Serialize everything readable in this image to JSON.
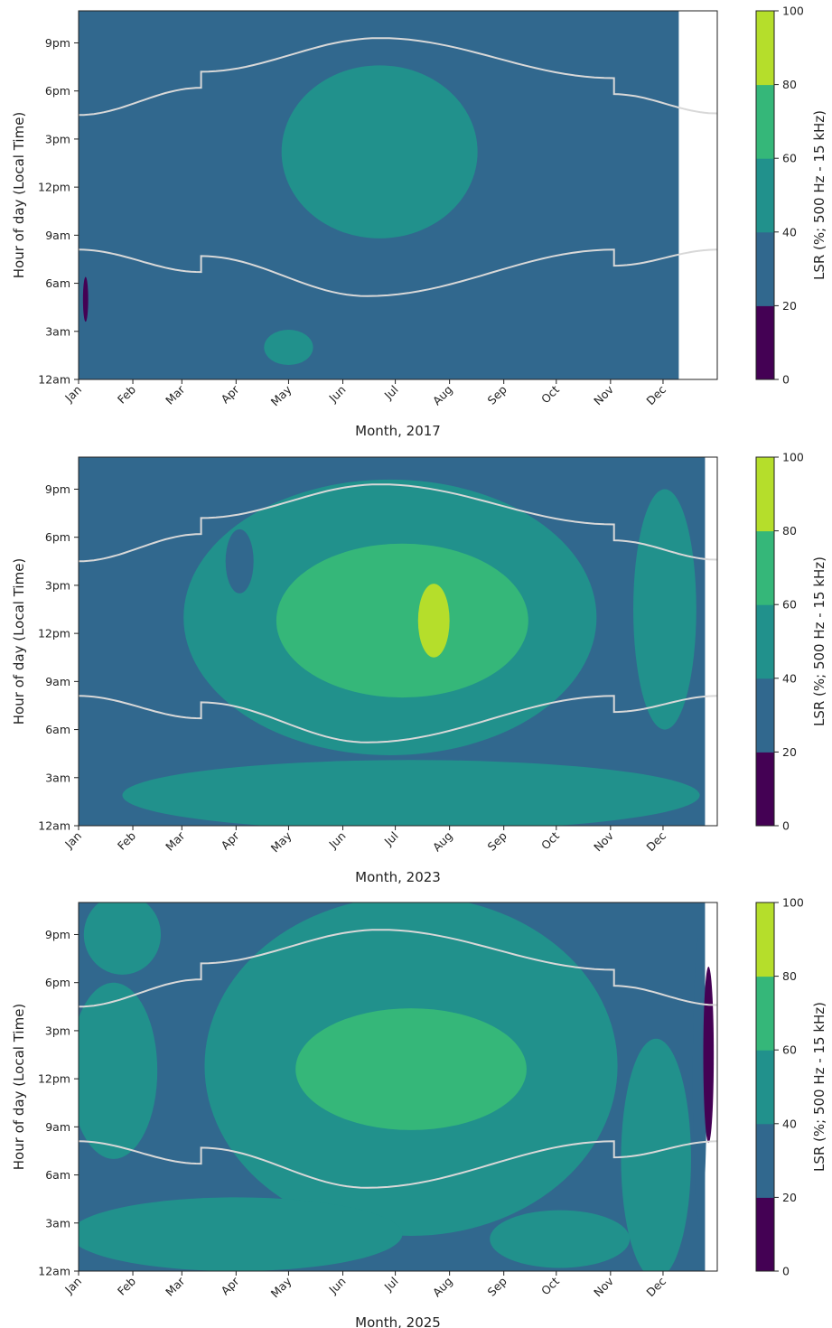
{
  "colors": {
    "levels": [
      "#440154",
      "#31688e",
      "#21918c",
      "#35b779",
      "#b5de2b"
    ],
    "sun_line": "#d8d8d8",
    "axis": "#222222"
  },
  "chart_data": [
    {
      "type": "heatmap",
      "subtype": "filled-contour",
      "xlabel": "Month, 2017",
      "ylabel": "Hour of day (Local Time)",
      "colorbar_label": "LSR (%; 500 Hz - 15 kHz)",
      "x_ticks": [
        "Jan",
        "Feb",
        "Mar",
        "Apr",
        "May",
        "Jun",
        "Jul",
        "Aug",
        "Sep",
        "Oct",
        "Nov",
        "Dec"
      ],
      "y_ticks": [
        "12am",
        "3am",
        "6am",
        "9am",
        "12pm",
        "3pm",
        "6pm",
        "9pm"
      ],
      "y_tick_hours": [
        0,
        3,
        6,
        9,
        12,
        15,
        18,
        21
      ],
      "ylim": [
        0,
        23
      ],
      "xlim_days": [
        0,
        365
      ],
      "colorbar_ticks": [
        0,
        20,
        40,
        60,
        80,
        100
      ],
      "levels": [
        0,
        20,
        40,
        60,
        80,
        100
      ],
      "data_end_day": 343,
      "blobs": [
        {
          "level": 40,
          "cx": 172,
          "cy": 14.2,
          "rx": 56,
          "ry": 5.4
        },
        {
          "level": 40,
          "cx": 120,
          "cy": 2.0,
          "rx": 14,
          "ry": 1.1
        },
        {
          "level": 0,
          "cx": 4,
          "cy": 5.0,
          "rx": 1.5,
          "ry": 1.4
        }
      ],
      "sunrise_hours": [
        {
          "day": 0,
          "h": 8.1
        },
        {
          "day": 70,
          "h": 6.7
        },
        {
          "day": 70,
          "h": 7.7
        },
        {
          "day": 165,
          "h": 5.2
        },
        {
          "day": 306,
          "h": 8.1
        },
        {
          "day": 306,
          "h": 7.1
        },
        {
          "day": 365,
          "h": 8.1
        }
      ],
      "sunset_hours": [
        {
          "day": 0,
          "h": 16.5
        },
        {
          "day": 70,
          "h": 18.2
        },
        {
          "day": 70,
          "h": 19.2
        },
        {
          "day": 172,
          "h": 21.3
        },
        {
          "day": 306,
          "h": 18.8
        },
        {
          "day": 306,
          "h": 17.8
        },
        {
          "day": 365,
          "h": 16.6
        }
      ]
    },
    {
      "type": "heatmap",
      "subtype": "filled-contour",
      "xlabel": "Month, 2023",
      "ylabel": "Hour of day (Local Time)",
      "colorbar_label": "LSR (%; 500 Hz - 15 kHz)",
      "x_ticks": [
        "Jan",
        "Feb",
        "Mar",
        "Apr",
        "May",
        "Jun",
        "Jul",
        "Aug",
        "Sep",
        "Oct",
        "Nov",
        "Dec"
      ],
      "y_ticks": [
        "12am",
        "3am",
        "6am",
        "9am",
        "12pm",
        "3pm",
        "6pm",
        "9pm"
      ],
      "y_tick_hours": [
        0,
        3,
        6,
        9,
        12,
        15,
        18,
        21
      ],
      "ylim": [
        0,
        23
      ],
      "xlim_days": [
        0,
        365
      ],
      "colorbar_ticks": [
        0,
        20,
        40,
        60,
        80,
        100
      ],
      "levels": [
        0,
        20,
        40,
        60,
        80,
        100
      ],
      "data_end_day": 358,
      "blobs": [
        {
          "level": 40,
          "cx": 178,
          "cy": 13.0,
          "rx": 118,
          "ry": 8.6
        },
        {
          "level": 40,
          "cx": 190,
          "cy": 1.9,
          "rx": 165,
          "ry": 2.2
        },
        {
          "level": 40,
          "cx": 335,
          "cy": 13.5,
          "rx": 18,
          "ry": 7.5
        },
        {
          "level": 20,
          "cx": 92,
          "cy": 16.5,
          "rx": 8,
          "ry": 2.0
        },
        {
          "level": 60,
          "cx": 185,
          "cy": 12.8,
          "rx": 72,
          "ry": 4.8
        },
        {
          "level": 80,
          "cx": 203,
          "cy": 12.8,
          "rx": 9,
          "ry": 2.3
        }
      ],
      "sunrise_hours": [
        {
          "day": 0,
          "h": 8.1
        },
        {
          "day": 70,
          "h": 6.7
        },
        {
          "day": 70,
          "h": 7.7
        },
        {
          "day": 165,
          "h": 5.2
        },
        {
          "day": 306,
          "h": 8.1
        },
        {
          "day": 306,
          "h": 7.1
        },
        {
          "day": 365,
          "h": 8.1
        }
      ],
      "sunset_hours": [
        {
          "day": 0,
          "h": 16.5
        },
        {
          "day": 70,
          "h": 18.2
        },
        {
          "day": 70,
          "h": 19.2
        },
        {
          "day": 172,
          "h": 21.3
        },
        {
          "day": 306,
          "h": 18.8
        },
        {
          "day": 306,
          "h": 17.8
        },
        {
          "day": 365,
          "h": 16.6
        }
      ]
    },
    {
      "type": "heatmap",
      "subtype": "filled-contour",
      "xlabel": "Month, 2025",
      "ylabel": "Hour of day (Local Time)",
      "colorbar_label": "LSR (%; 500 Hz - 15 kHz)",
      "x_ticks": [
        "Jan",
        "Feb",
        "Mar",
        "Apr",
        "May",
        "Jun",
        "Jul",
        "Aug",
        "Sep",
        "Oct",
        "Nov",
        "Dec"
      ],
      "y_ticks": [
        "12am",
        "3am",
        "6am",
        "9am",
        "12pm",
        "3pm",
        "6pm",
        "9pm"
      ],
      "y_tick_hours": [
        0,
        3,
        6,
        9,
        12,
        15,
        18,
        21
      ],
      "ylim": [
        0,
        23
      ],
      "xlim_days": [
        0,
        365
      ],
      "colorbar_ticks": [
        0,
        20,
        40,
        60,
        80,
        100
      ],
      "levels": [
        0,
        20,
        40,
        60,
        80,
        100
      ],
      "data_end_day": 358,
      "blobs": [
        {
          "level": 40,
          "cx": 190,
          "cy": 12.8,
          "rx": 118,
          "ry": 10.6
        },
        {
          "level": 40,
          "cx": 20,
          "cy": 12.5,
          "rx": 25,
          "ry": 5.5
        },
        {
          "level": 40,
          "cx": 25,
          "cy": 21.0,
          "rx": 22,
          "ry": 2.5
        },
        {
          "level": 40,
          "cx": 90,
          "cy": 2.3,
          "rx": 95,
          "ry": 2.3
        },
        {
          "level": 40,
          "cx": 330,
          "cy": 7.0,
          "rx": 20,
          "ry": 7.5
        },
        {
          "level": 40,
          "cx": 275,
          "cy": 2.0,
          "rx": 40,
          "ry": 1.8
        },
        {
          "level": 20,
          "cx": 355,
          "cy": 12.0,
          "rx": 4,
          "ry": 9.0
        },
        {
          "level": 0,
          "cx": 360,
          "cy": 13.5,
          "rx": 3,
          "ry": 5.5
        },
        {
          "level": 60,
          "cx": 190,
          "cy": 12.6,
          "rx": 66,
          "ry": 3.8
        }
      ],
      "sunrise_hours": [
        {
          "day": 0,
          "h": 8.1
        },
        {
          "day": 70,
          "h": 6.7
        },
        {
          "day": 70,
          "h": 7.7
        },
        {
          "day": 165,
          "h": 5.2
        },
        {
          "day": 306,
          "h": 8.1
        },
        {
          "day": 306,
          "h": 7.1
        },
        {
          "day": 365,
          "h": 8.1
        }
      ],
      "sunset_hours": [
        {
          "day": 0,
          "h": 16.5
        },
        {
          "day": 70,
          "h": 18.2
        },
        {
          "day": 70,
          "h": 19.2
        },
        {
          "day": 172,
          "h": 21.3
        },
        {
          "day": 306,
          "h": 18.8
        },
        {
          "day": 306,
          "h": 17.8
        },
        {
          "day": 365,
          "h": 16.6
        }
      ]
    }
  ]
}
